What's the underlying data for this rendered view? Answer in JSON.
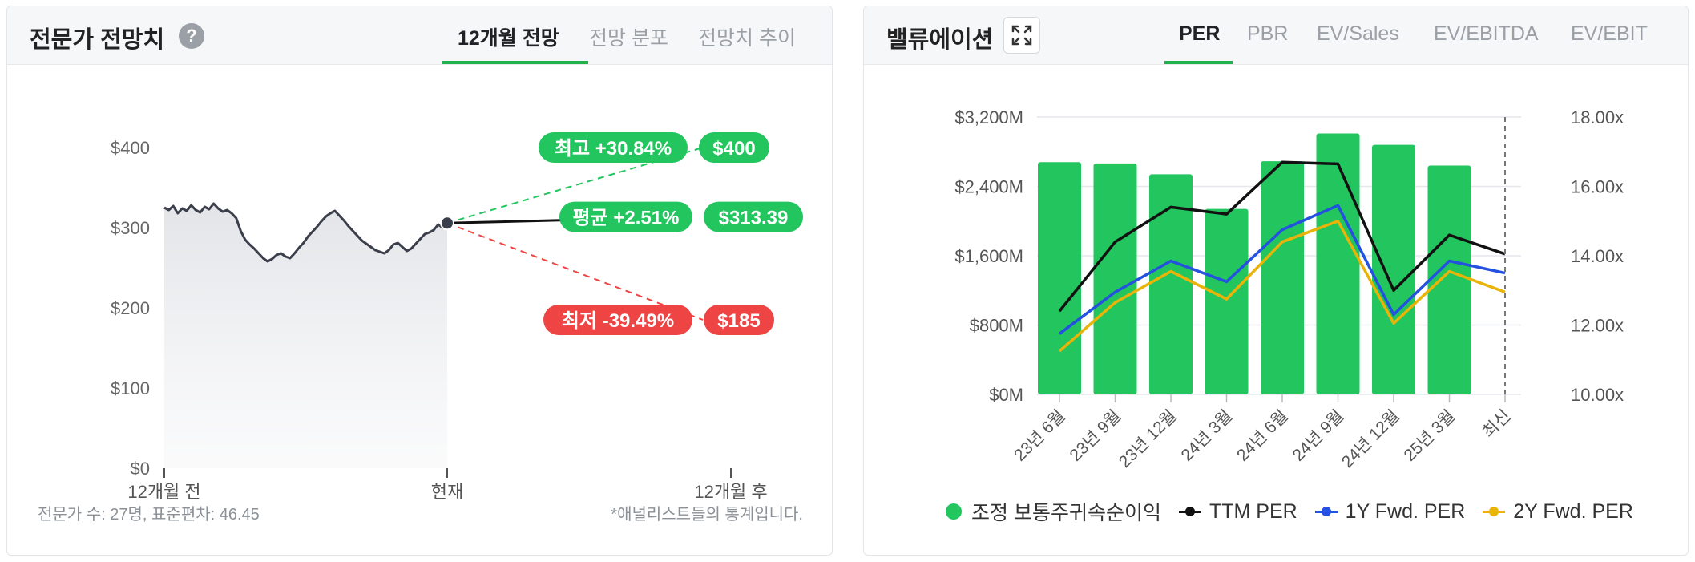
{
  "forecast_panel": {
    "title": "전문가 전망치",
    "tabs": [
      {
        "label": "12개월 전망",
        "active": true
      },
      {
        "label": "전망 분포",
        "active": false
      },
      {
        "label": "전망치 추이",
        "active": false
      }
    ],
    "footnote_left": "전문가 수: 27명, 표준편차: 46.45",
    "footnote_right": "*애널리스트들의 통계입니다."
  },
  "valuation_panel": {
    "title": "밸류에이션",
    "tabs": [
      {
        "label": "PER",
        "active": true
      },
      {
        "label": "PBR",
        "active": false
      },
      {
        "label": "EV/Sales",
        "active": false
      },
      {
        "label": "EV/EBITDA",
        "active": false
      },
      {
        "label": "EV/EBIT",
        "active": false
      }
    ]
  },
  "colors": {
    "green": "#22c55e",
    "red": "#ef4444",
    "black": "#111111",
    "blue": "#2451e0",
    "yellow": "#eab308",
    "price_line": "#3a3f4b"
  },
  "chart_data": [
    {
      "type": "line",
      "title": "12개월 전망",
      "x_ticks": [
        "12개월 전",
        "현재",
        "12개월 후"
      ],
      "y_ticks": [
        "$400",
        "$300",
        "$200",
        "$100",
        "$0"
      ],
      "ylim": [
        0,
        400
      ],
      "current_price": 305.7,
      "price_history": [
        325,
        322,
        327,
        318,
        324,
        321,
        328,
        322,
        319,
        326,
        323,
        330,
        324,
        320,
        322,
        318,
        312,
        296,
        285,
        279,
        274,
        268,
        262,
        258,
        261,
        266,
        268,
        264,
        262,
        268,
        275,
        281,
        289,
        295,
        301,
        308,
        314,
        318,
        321,
        315,
        309,
        302,
        296,
        290,
        284,
        280,
        276,
        272,
        270,
        268,
        272,
        279,
        281,
        276,
        271,
        274,
        280,
        286,
        292,
        294,
        297,
        304,
        300,
        306
      ],
      "targets": [
        {
          "label": "최고 +30.84%",
          "price_label": "$400",
          "value": 400
        },
        {
          "label": "평균 +2.51%",
          "price_label": "$313.39",
          "value": 313.39
        },
        {
          "label": "최저 -39.49%",
          "price_label": "$185",
          "value": 185
        }
      ]
    },
    {
      "type": "bar",
      "categories": [
        "23년 6월",
        "23년 9월",
        "23년 12월",
        "24년 3월",
        "24년 6월",
        "24년 9월",
        "24년 12월",
        "25년 3월",
        "최신"
      ],
      "y_left_ticks": [
        "$3,200M",
        "$2,400M",
        "$1,600M",
        "$800M",
        "$0M"
      ],
      "y_right_ticks": [
        "18.00x",
        "16.00x",
        "14.00x",
        "12.00x",
        "10.00x"
      ],
      "ylim_left": [
        0,
        3200
      ],
      "ylim_right": [
        10,
        18
      ],
      "series": [
        {
          "name": "조정 보통주귀속순이익",
          "type": "bar",
          "values": [
            2680,
            2665,
            2540,
            2140,
            2690,
            3010,
            2880,
            2640,
            null
          ]
        },
        {
          "name": "TTM PER",
          "type": "line",
          "values": [
            12.4,
            14.4,
            15.4,
            15.2,
            16.7,
            16.65,
            13.0,
            14.6,
            14.05
          ]
        },
        {
          "name": "1Y Fwd. PER",
          "type": "line",
          "values": [
            11.75,
            12.95,
            13.85,
            13.25,
            14.75,
            15.45,
            12.3,
            13.85,
            13.5
          ]
        },
        {
          "name": "2Y Fwd. PER",
          "type": "line",
          "values": [
            11.25,
            12.65,
            13.55,
            12.75,
            14.4,
            15.0,
            12.05,
            13.55,
            12.95
          ]
        }
      ]
    }
  ]
}
